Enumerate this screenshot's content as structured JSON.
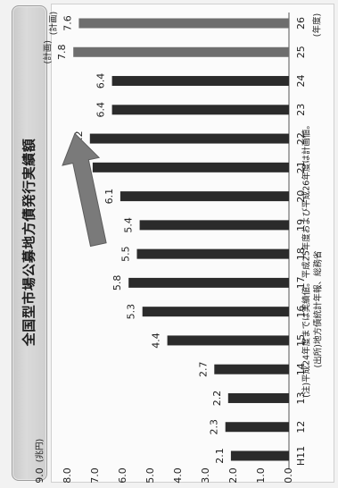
{
  "title": "全国型市場公募地方債発行実績額",
  "chart_data": {
    "type": "bar",
    "orientation": "rotated-90-ccw",
    "title": "全国型市場公募地方債発行実績額",
    "ylabel": "(兆円)",
    "xlabel": "(年度)",
    "categories": [
      "H11",
      "12",
      "13",
      "14",
      "15",
      "16",
      "17",
      "18",
      "19",
      "20",
      "21",
      "22",
      "23",
      "24",
      "25",
      "26"
    ],
    "value_labels": [
      "2.1",
      "2.3",
      "2.2",
      "2.7",
      "4.4",
      "5.3",
      "5.8",
      "5.5",
      "5.4",
      "6.1",
      "7.1",
      "7.2",
      "6.4",
      "6.4",
      "7.8",
      "7.6"
    ],
    "values": [
      2.1,
      2.3,
      2.2,
      2.7,
      4.4,
      5.3,
      5.8,
      5.5,
      5.4,
      6.1,
      7.1,
      7.2,
      6.4,
      6.4,
      7.8,
      7.6
    ],
    "planned": [
      false,
      false,
      false,
      false,
      false,
      false,
      false,
      false,
      false,
      false,
      false,
      false,
      false,
      false,
      true,
      true
    ],
    "planned_label": "(計画)",
    "y_ticks": [
      "0.0",
      "1.0",
      "2.0",
      "3.0",
      "4.0",
      "5.0",
      "6.0",
      "7.0",
      "8.0",
      "9.0"
    ],
    "ylim": [
      0,
      9
    ],
    "grid": false,
    "colors": {
      "actual": "#2b2b2b",
      "planned": "#6e6e6e",
      "arrow": "#7a7a7a"
    },
    "notes": [
      "(注)平成24年度までは実績値。平成25年度および平成26年度は計画値。",
      "(出所)地方債統計年報、総務省"
    ],
    "trend_arrow": "up"
  }
}
